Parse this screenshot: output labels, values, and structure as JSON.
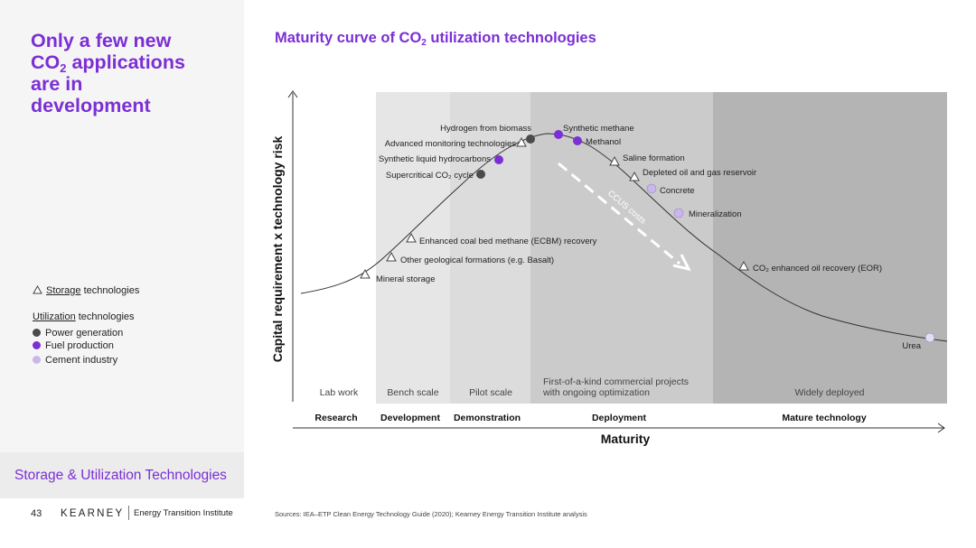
{
  "headline": {
    "part1": "Only a few new",
    "co": "CO",
    "sub": "2",
    "part2": "applications",
    "part3": "are in",
    "part4": "development"
  },
  "chart_title": {
    "prefix": "Maturity curve of CO",
    "sub": "2",
    "suffix": " utilization technologies"
  },
  "legend": {
    "storage_underlined": "Storage",
    "storage_rest": " technologies",
    "utilization_underlined": "Utilization",
    "utilization_rest": " technologies",
    "items": [
      {
        "label": "Power generation",
        "color": "#4a4a4a"
      },
      {
        "label": "Fuel production",
        "color": "#7b2fd4"
      },
      {
        "label": "Cement industry",
        "color": "#c9b6ec"
      }
    ]
  },
  "section_title": "Storage & Utilization Technologies",
  "footer": {
    "page": "43",
    "brand": "KEARNEY",
    "institute": "Energy Transition Institute"
  },
  "sources": "Sources: IEA–ETP Clean Energy Technology Guide (2020); Kearney Energy Transition Institute analysis",
  "diagram": {
    "y_axis_title": "Capital requirement x technology  risk",
    "x_axis_title": "Maturity",
    "phases": [
      "Lab work",
      "Bench scale",
      "Pilot scale",
      "First-of-a-kind commercial projects",
      "with ongoing optimization",
      "Widely deployed"
    ],
    "stages": [
      "Research",
      "Development",
      "Demonstration",
      "Deployment",
      "Mature technology"
    ],
    "ccus_label": "CCUS costs",
    "technologies": [
      {
        "label": "Mineral storage",
        "kind": "storage"
      },
      {
        "label": "Other geological formations (e.g. Basalt)",
        "kind": "storage"
      },
      {
        "label": "Enhanced coal bed methane (ECBM) recovery",
        "kind": "storage"
      },
      {
        "label": "Supercritical CO₂ cycle",
        "kind": "power"
      },
      {
        "label": "Synthetic liquid hydrocarbons",
        "kind": "fuel"
      },
      {
        "label": "Advanced monitoring technologies",
        "kind": "storage"
      },
      {
        "label": "Hydrogen from biomass",
        "kind": "power"
      },
      {
        "label": "Synthetic methane",
        "kind": "fuel"
      },
      {
        "label": "Methanol",
        "kind": "fuel"
      },
      {
        "label": "Saline formation",
        "kind": "storage"
      },
      {
        "label": "Depleted oil and gas reservoir",
        "kind": "storage"
      },
      {
        "label": "Concrete",
        "kind": "cement"
      },
      {
        "label": "Mineralization",
        "kind": "cement"
      },
      {
        "label": "CO₂ enhanced oil recovery (EOR)",
        "kind": "storage"
      },
      {
        "label": "Urea",
        "kind": "cement"
      }
    ]
  }
}
